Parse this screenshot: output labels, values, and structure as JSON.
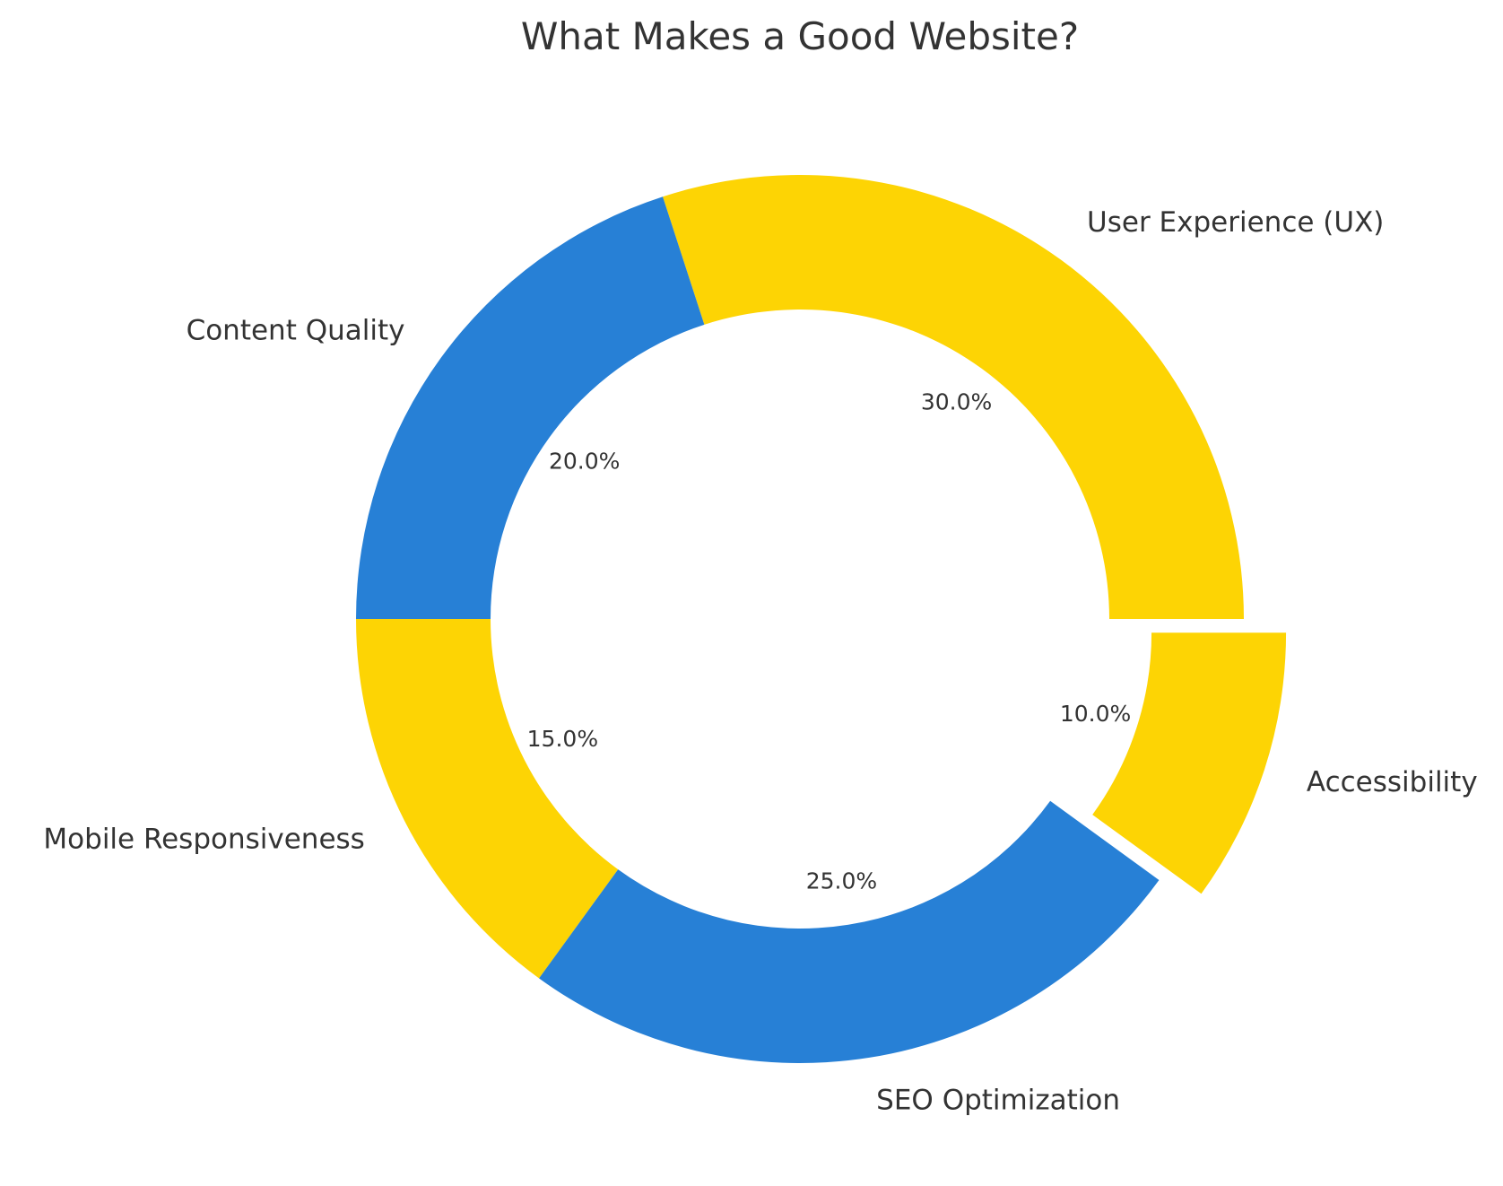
{
  "chart_data": {
    "type": "pie",
    "title": "What Makes a Good Website?",
    "start_angle_deg": 0,
    "direction": "counterclockwise",
    "slices": [
      {
        "label": "User Experience (UX)",
        "value": 30,
        "percent_label": "30.0%",
        "color": "#FDD404",
        "explode": 0
      },
      {
        "label": "Content Quality",
        "value": 20,
        "percent_label": "20.0%",
        "color": "#2780D6",
        "explode": 0
      },
      {
        "label": "Mobile Responsiveness",
        "value": 15,
        "percent_label": "15.0%",
        "color": "#FDD404",
        "explode": 0
      },
      {
        "label": "SEO Optimization",
        "value": 25,
        "percent_label": "25.0%",
        "color": "#2780D6",
        "explode": 0
      },
      {
        "label": "Accessibility",
        "value": 10,
        "percent_label": "10.0%",
        "color": "#FDD404",
        "explode": 0.1
      }
    ]
  }
}
